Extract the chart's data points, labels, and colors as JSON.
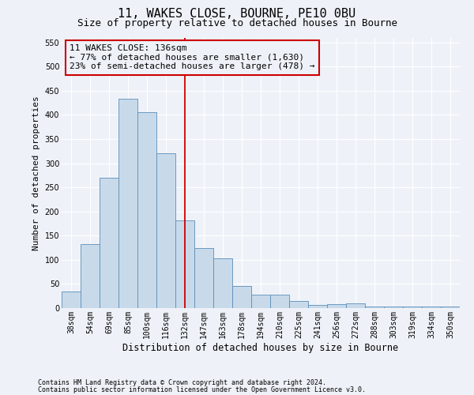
{
  "title": "11, WAKES CLOSE, BOURNE, PE10 0BU",
  "subtitle": "Size of property relative to detached houses in Bourne",
  "xlabel": "Distribution of detached houses by size in Bourne",
  "ylabel": "Number of detached properties",
  "categories": [
    "38sqm",
    "54sqm",
    "69sqm",
    "85sqm",
    "100sqm",
    "116sqm",
    "132sqm",
    "147sqm",
    "163sqm",
    "178sqm",
    "194sqm",
    "210sqm",
    "225sqm",
    "241sqm",
    "256sqm",
    "272sqm",
    "288sqm",
    "303sqm",
    "319sqm",
    "334sqm",
    "350sqm"
  ],
  "values": [
    35,
    133,
    270,
    433,
    405,
    320,
    182,
    125,
    103,
    45,
    28,
    28,
    15,
    6,
    8,
    10,
    4,
    4,
    4,
    4,
    4
  ],
  "bar_color": "#c8daea",
  "bar_edge_color": "#5b8db8",
  "vline_color": "#cc0000",
  "vline_index": 6.0,
  "annotation_text": "11 WAKES CLOSE: 136sqm\n← 77% of detached houses are smaller (1,630)\n23% of semi-detached houses are larger (478) →",
  "annotation_box_edgecolor": "#cc0000",
  "ylim": [
    0,
    560
  ],
  "yticks": [
    0,
    50,
    100,
    150,
    200,
    250,
    300,
    350,
    400,
    450,
    500,
    550
  ],
  "bg_color": "#eef2f8",
  "grid_color": "#ffffff",
  "footer_line1": "Contains HM Land Registry data © Crown copyright and database right 2024.",
  "footer_line2": "Contains public sector information licensed under the Open Government Licence v3.0.",
  "title_fontsize": 11,
  "subtitle_fontsize": 9,
  "xlabel_fontsize": 8.5,
  "ylabel_fontsize": 8,
  "tick_fontsize": 7,
  "ann_fontsize": 8,
  "footer_fontsize": 6
}
